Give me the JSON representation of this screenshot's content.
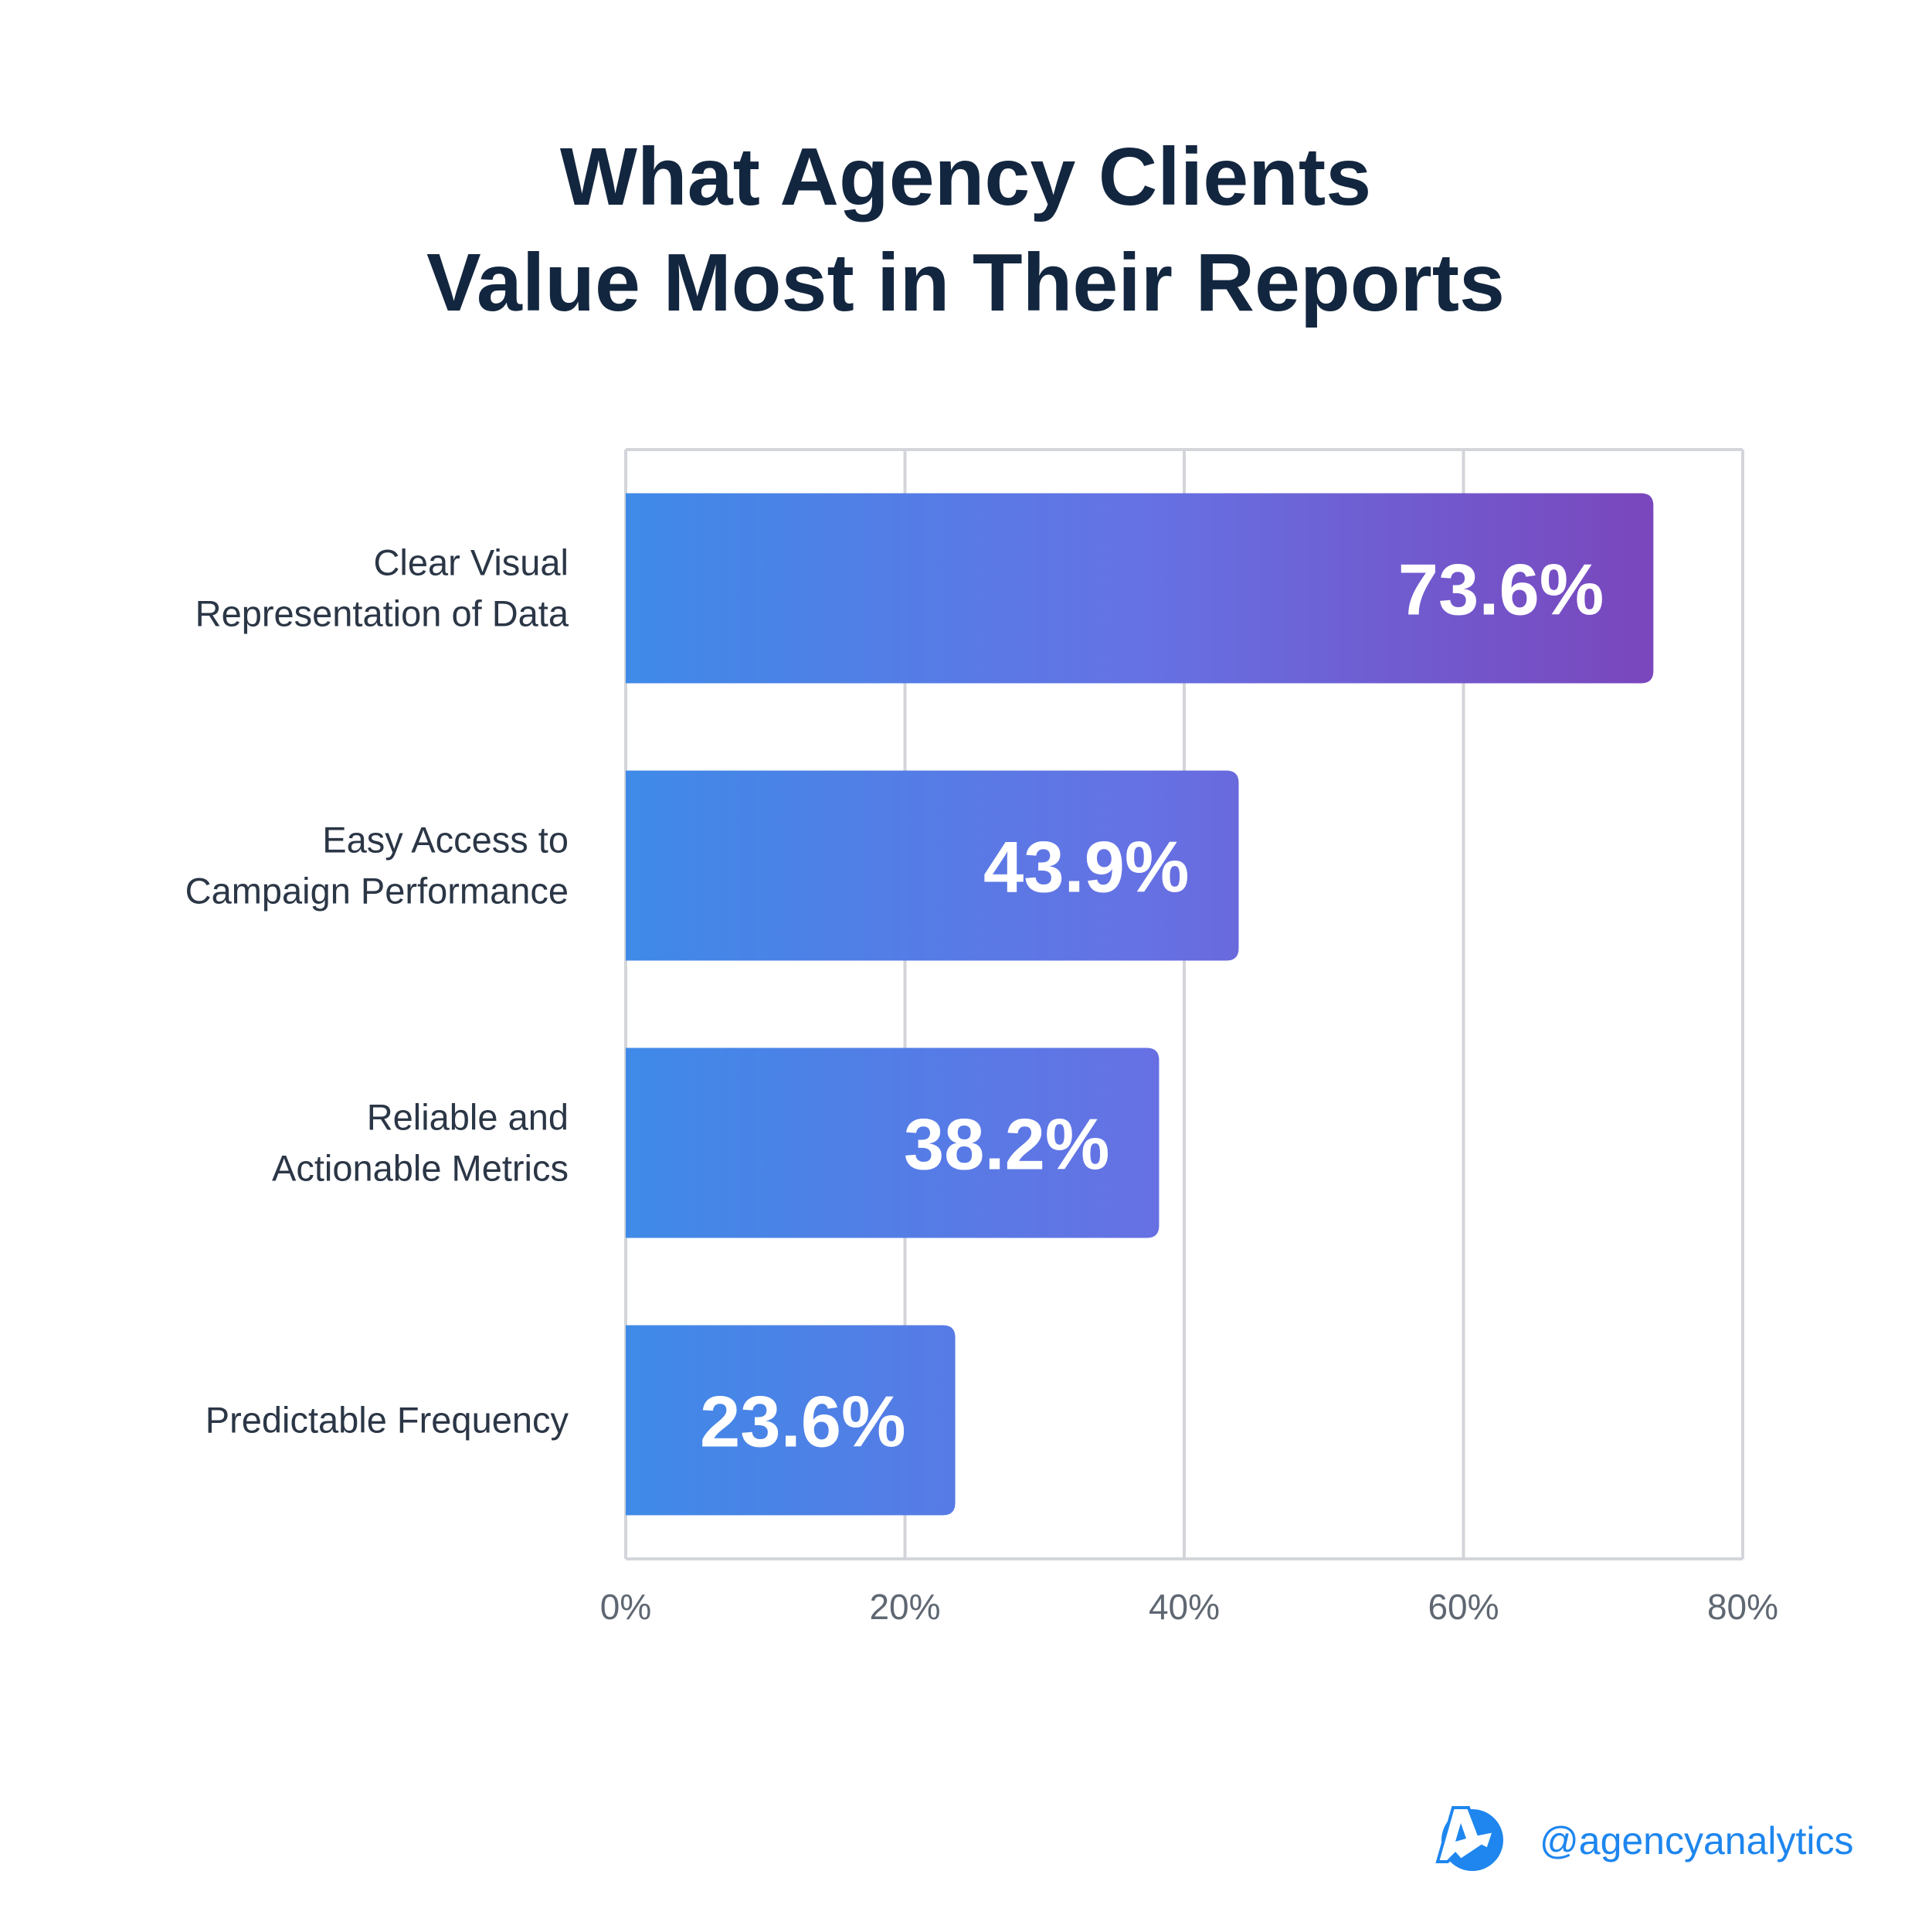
{
  "chart_data": {
    "type": "bar",
    "orientation": "horizontal",
    "title": [
      "What Agency Clients",
      "Value Most in Their Reports"
    ],
    "categories": [
      [
        "Clear Visual",
        "Representation of Data"
      ],
      [
        "Easy Access to",
        "Campaign Performance"
      ],
      [
        "Reliable and",
        "Actionable Metrics"
      ],
      [
        "Predictable Frequency"
      ]
    ],
    "values": [
      73.6,
      43.9,
      38.2,
      23.6
    ],
    "value_labels": [
      "73.6%",
      "43.9%",
      "38.2%",
      "23.6%"
    ],
    "xlim": [
      0,
      80
    ],
    "xticks": [
      0,
      20,
      40,
      60,
      80
    ],
    "xtick_labels": [
      "0%",
      "20%",
      "40%",
      "60%",
      "80%"
    ],
    "xlabel": "",
    "ylabel": "",
    "grid": true,
    "colors": {
      "gradient_start": "#3f8ae8",
      "gradient_mid": "#6572e4",
      "gradient_end": "#7a47bd",
      "grid": "#d3d5da"
    }
  },
  "footer": {
    "handle": "@agencyanalytics",
    "brand_color": "#1e86ee"
  }
}
